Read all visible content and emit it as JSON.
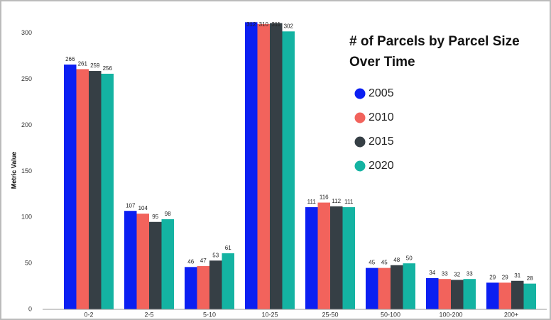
{
  "chart_data": {
    "type": "bar",
    "title": "# of Parcels by Parcel Size Over Time",
    "y_label": "Metric Value",
    "categories": [
      "0-2",
      "2-5",
      "5-10",
      "10-25",
      "25-50",
      "50-100",
      "100-200",
      "200+"
    ],
    "series": [
      {
        "name": "2005",
        "color": "#0b1ff2",
        "values": [
          266,
          107,
          46,
          312,
          111,
          45,
          34,
          29
        ]
      },
      {
        "name": "2010",
        "color": "#f2635c",
        "values": [
          261,
          104,
          47,
          310,
          116,
          45,
          33,
          29
        ]
      },
      {
        "name": "2015",
        "color": "#363f45",
        "values": [
          259,
          95,
          53,
          311,
          112,
          48,
          32,
          31
        ]
      },
      {
        "name": "2020",
        "color": "#14b3a2",
        "values": [
          256,
          98,
          61,
          302,
          111,
          50,
          33,
          28
        ]
      }
    ],
    "ylim": [
      0,
      313
    ],
    "yticks": [
      0,
      50,
      100,
      150,
      200,
      250,
      300
    ],
    "grid": false,
    "legend": "upper right"
  }
}
